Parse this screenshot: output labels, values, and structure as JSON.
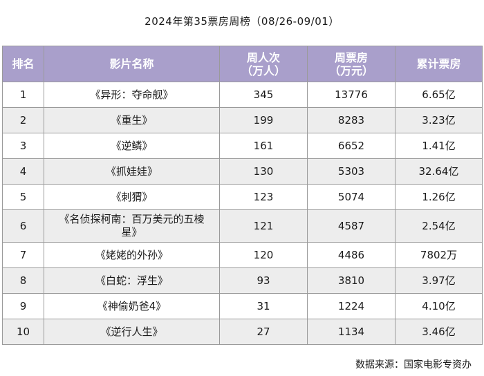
{
  "title": "2024年第35票房周榜（08/26-09/01）",
  "headers": {
    "rank": "排名",
    "film": "影片名称",
    "audience_line1": "周人次",
    "audience_line2": "（万人）",
    "weekly_line1": "周票房",
    "weekly_line2": "（万元）",
    "total": "累计票房"
  },
  "rows": [
    {
      "rank": "1",
      "film": "《异形：夺命舰》",
      "audience": "345",
      "weekly": "13776",
      "total": "6.65亿"
    },
    {
      "rank": "2",
      "film": "《重生》",
      "audience": "199",
      "weekly": "8283",
      "total": "3.23亿"
    },
    {
      "rank": "3",
      "film": "《逆鳞》",
      "audience": "161",
      "weekly": "6652",
      "total": "1.41亿"
    },
    {
      "rank": "4",
      "film": "《抓娃娃》",
      "audience": "130",
      "weekly": "5303",
      "total": "32.64亿"
    },
    {
      "rank": "5",
      "film": "《刺猬》",
      "audience": "123",
      "weekly": "5074",
      "total": "1.26亿"
    },
    {
      "rank": "6",
      "film": "《名侦探柯南：百万美元的五棱星》",
      "audience": "121",
      "weekly": "4587",
      "total": "2.54亿"
    },
    {
      "rank": "7",
      "film": "《姥姥的外孙》",
      "audience": "120",
      "weekly": "4486",
      "total": "7802万"
    },
    {
      "rank": "8",
      "film": "《白蛇：浮生》",
      "audience": "93",
      "weekly": "3810",
      "total": "3.97亿"
    },
    {
      "rank": "9",
      "film": "《神偷奶爸4》",
      "audience": "31",
      "weekly": "1224",
      "total": "4.10亿"
    },
    {
      "rank": "10",
      "film": "《逆行人生》",
      "audience": "27",
      "weekly": "1134",
      "total": "3.46亿"
    }
  ],
  "source": "数据来源：国家电影专资办"
}
